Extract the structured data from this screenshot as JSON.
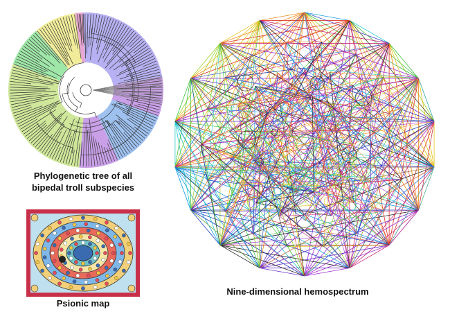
{
  "captions": {
    "tree_line1": "Phylogenetic tree of all",
    "tree_line2": "bipedal troll subspecies",
    "map": "Psionic map",
    "hemospectrum": "Nine-dimensional hemospectrum"
  },
  "tree_clade_colors": [
    "#b7b0f2",
    "#cfe79a",
    "#9ec1f0",
    "#f0ec9a",
    "#e7a6d3",
    "#9fe7a8",
    "#c9a0e8"
  ],
  "hemospectrum_colors": [
    "#1f3fbf",
    "#1aa0e6",
    "#20c8c8",
    "#3cbf3c",
    "#9ad22a",
    "#e6c21a",
    "#f08a1a",
    "#e0342a",
    "#c8287a",
    "#a02ad2",
    "#6a2ac8",
    "#222222"
  ],
  "map_colors": {
    "border": "#c8304a",
    "field": "#bfe0ee",
    "rings": [
      "#f2d07a",
      "#7fb8e8",
      "#e86a5a",
      "#f5e6a8",
      "#6fc2c8"
    ],
    "center": "#3a6ab0"
  }
}
